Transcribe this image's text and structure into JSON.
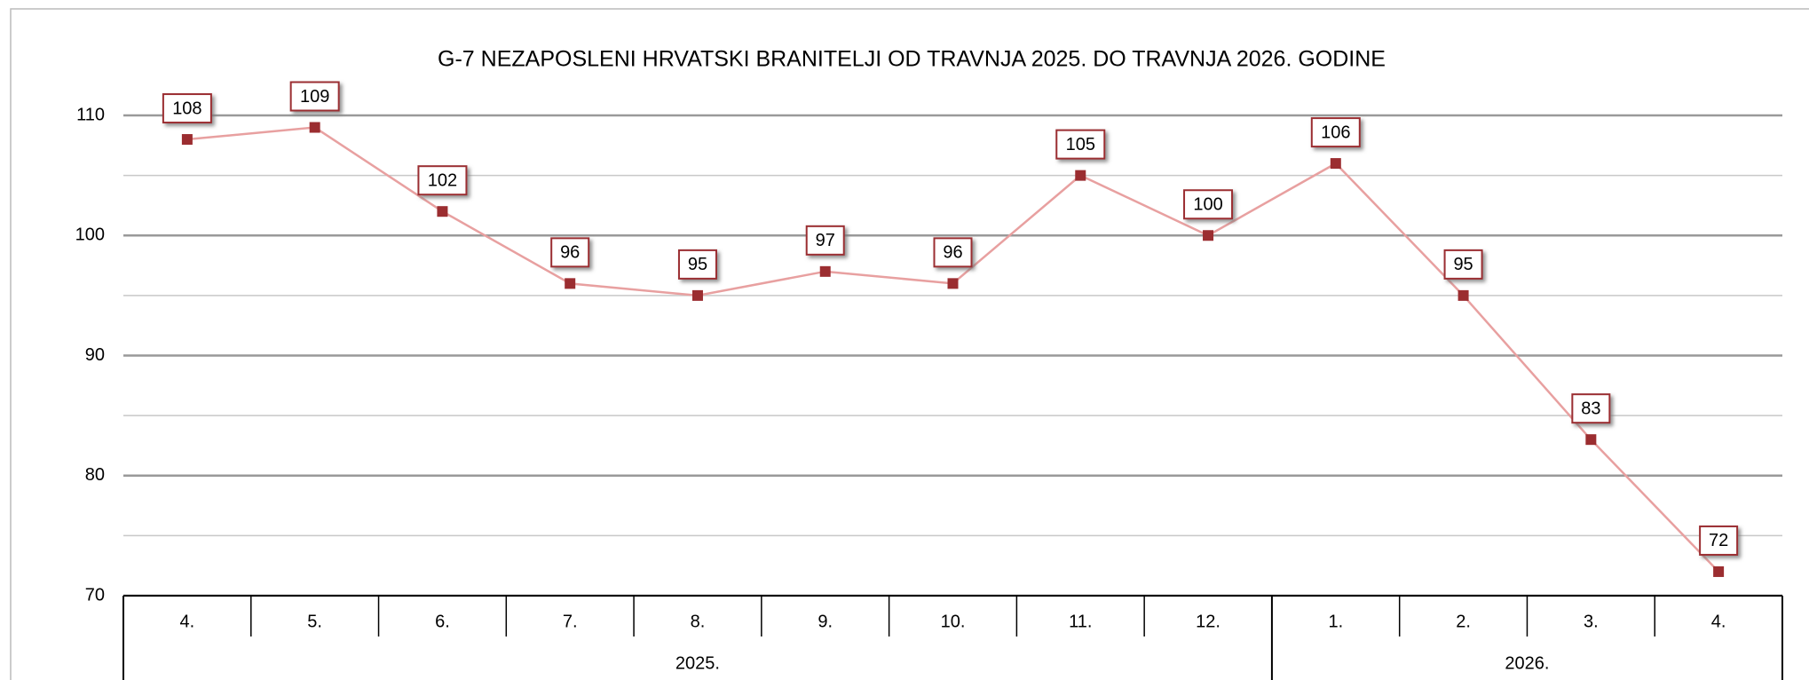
{
  "chart_data": {
    "type": "line",
    "title": "G-7 NEZAPOSLENI HRVATSKI BRANITELJI OD TRAVNJA 2025. DO TRAVNJA 2026. GODINE",
    "groups": [
      {
        "name": "2025.",
        "categories": [
          "4.",
          "5.",
          "6.",
          "7.",
          "8.",
          "9.",
          "10.",
          "11.",
          "12."
        ]
      },
      {
        "name": "2026.",
        "categories": [
          "1.",
          "2.",
          "3.",
          "4."
        ]
      }
    ],
    "series": [
      {
        "name": "",
        "color": "#e8a0a0",
        "marker_color": "#9b2d30",
        "values": [
          108,
          109,
          102,
          96,
          95,
          97,
          96,
          105,
          100,
          106,
          95,
          83,
          72
        ]
      }
    ],
    "ylim": [
      70,
      110
    ],
    "yticks": [
      70,
      80,
      90,
      100,
      110
    ],
    "minor_yticks": [
      75,
      85,
      95,
      105
    ],
    "grid": true
  }
}
